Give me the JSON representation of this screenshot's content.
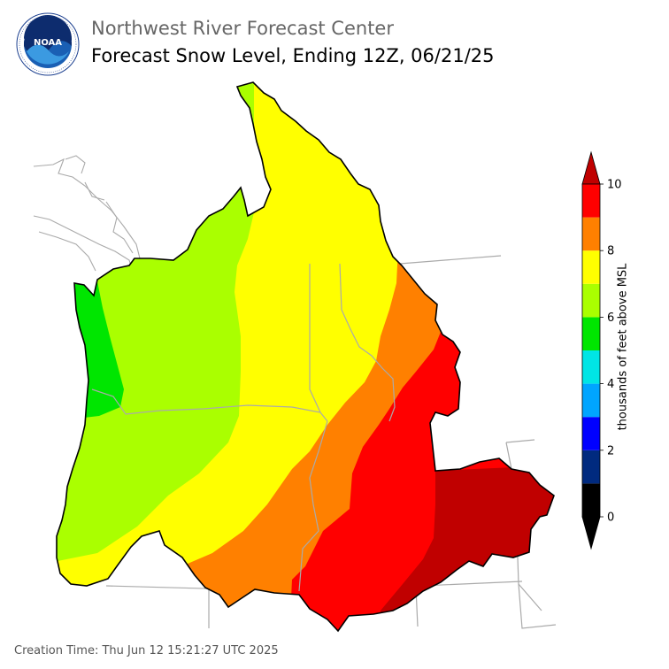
{
  "header": {
    "org": "Northwest River Forecast Center",
    "title": "Forecast Snow Level, Ending 12Z, 06/21/25"
  },
  "logo": {
    "text": "NOAA",
    "icon": "noaa-logo-icon"
  },
  "colorbar": {
    "label": "thousands of feet above MSL",
    "ticks": [
      "0",
      "2",
      "4",
      "6",
      "8",
      "10"
    ],
    "bins": [
      {
        "min": 0,
        "max": 1,
        "color": "#000000"
      },
      {
        "min": 1,
        "max": 2,
        "color": "#002a7f"
      },
      {
        "min": 2,
        "max": 3,
        "color": "#0000ff"
      },
      {
        "min": 3,
        "max": 4,
        "color": "#00a5ff"
      },
      {
        "min": 4,
        "max": 5,
        "color": "#00e5e5"
      },
      {
        "min": 5,
        "max": 6,
        "color": "#00e600"
      },
      {
        "min": 6,
        "max": 7,
        "color": "#aaff00"
      },
      {
        "min": 7,
        "max": 8,
        "color": "#ffff00"
      },
      {
        "min": 8,
        "max": 9,
        "color": "#ff8000"
      },
      {
        "min": 9,
        "max": 10,
        "color": "#ff0000"
      }
    ],
    "under_color": "#000000",
    "over_color": "#c00000"
  },
  "footer": {
    "creation": "Creation Time: Thu Jun 12 15:21:27 UTC 2025"
  }
}
